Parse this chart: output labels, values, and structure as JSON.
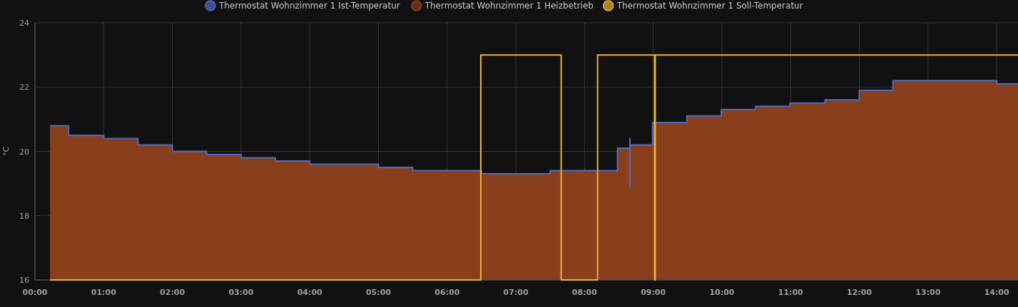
{
  "chart_data": {
    "type": "step",
    "ylabel": "°C",
    "xlim": [
      0,
      14.31
    ],
    "ylim": [
      16,
      24
    ],
    "xticks": [
      {
        "value": 0,
        "label": "00:00"
      },
      {
        "value": 1,
        "label": "01:00"
      },
      {
        "value": 2,
        "label": "02:00"
      },
      {
        "value": 3,
        "label": "03:00"
      },
      {
        "value": 4,
        "label": "04:00"
      },
      {
        "value": 5,
        "label": "05:00"
      },
      {
        "value": 6,
        "label": "06:00"
      },
      {
        "value": 7,
        "label": "07:00"
      },
      {
        "value": 8,
        "label": "08:00"
      },
      {
        "value": 9,
        "label": "09:00"
      },
      {
        "value": 10,
        "label": "10:00"
      },
      {
        "value": 11,
        "label": "11:00"
      },
      {
        "value": 12,
        "label": "12:00"
      },
      {
        "value": 13,
        "label": "13:00"
      },
      {
        "value": 14,
        "label": "14:00"
      }
    ],
    "yticks": [
      16,
      18,
      20,
      22,
      24
    ],
    "grid": true,
    "legend": "top",
    "series": [
      {
        "name": "Thermostat Wohnzimmer 1 Heizbetrieb",
        "type": "area",
        "color": "#8a3f1c",
        "x": [
          0.22,
          0.49,
          1.0,
          1.5,
          2.0,
          2.5,
          3.0,
          3.5,
          4.0,
          5.0,
          5.5,
          6.5,
          7.5,
          8.48,
          8.66,
          8.99,
          9.49,
          9.99,
          10.49,
          10.99,
          11.5,
          12.0,
          12.49,
          14.0,
          14.31
        ],
        "values": [
          20.8,
          20.5,
          20.4,
          20.2,
          20.0,
          19.9,
          19.8,
          19.7,
          19.6,
          19.5,
          19.4,
          19.3,
          19.4,
          20.1,
          20.2,
          20.9,
          21.1,
          21.3,
          21.4,
          21.5,
          21.6,
          21.9,
          22.2,
          22.1,
          22.1
        ]
      },
      {
        "name": "Thermostat Wohnzimmer 1 Ist-Temperatur",
        "color": "#4e6bc4",
        "x": [
          0.22,
          0.49,
          1.0,
          1.5,
          2.0,
          2.5,
          3.0,
          3.5,
          4.0,
          5.0,
          5.5,
          6.5,
          7.5,
          8.48,
          8.66,
          8.661,
          8.662,
          8.99,
          9.49,
          9.99,
          10.49,
          10.99,
          11.5,
          12.0,
          12.49,
          14.0,
          14.31
        ],
        "values": [
          20.8,
          20.5,
          20.4,
          20.2,
          20.0,
          19.9,
          19.8,
          19.7,
          19.6,
          19.5,
          19.4,
          19.3,
          19.4,
          20.1,
          18.9,
          20.4,
          20.2,
          20.9,
          21.1,
          21.3,
          21.4,
          21.5,
          21.6,
          21.9,
          22.2,
          22.1,
          22.1
        ]
      },
      {
        "name": "Thermostat Wohnzimmer 1 Soll-Temperatur",
        "color": "#e8b23a",
        "x": [
          0.22,
          6.49,
          7.66,
          8.19,
          9.02,
          9.03,
          14.31
        ],
        "values": [
          16,
          23,
          16,
          23,
          16,
          23,
          23
        ]
      }
    ]
  }
}
